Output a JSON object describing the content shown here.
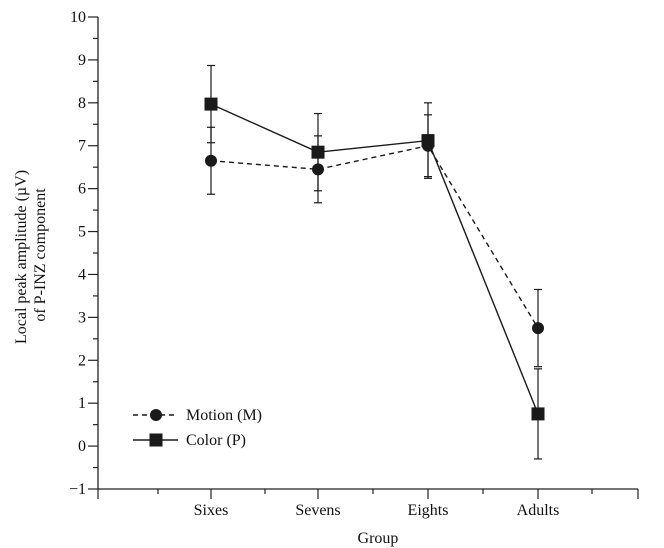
{
  "chart_data": {
    "type": "line",
    "categories": [
      "Sixes",
      "Sevens",
      "Eights",
      "Adults"
    ],
    "xlabel": "Group",
    "ylabel_lines": [
      "Local peak amplitude (µV)",
      "of P-INZ component"
    ],
    "ylim": [
      -1,
      10
    ],
    "yticks": [
      -1,
      0,
      1,
      2,
      3,
      4,
      5,
      6,
      7,
      8,
      9,
      10
    ],
    "grid": false,
    "legend_position": "bottom-left",
    "series": [
      {
        "name": "Motion (M)",
        "marker": "circle",
        "line_style": "dashed",
        "color": "#1a1a1a",
        "values": [
          6.65,
          6.45,
          7.0,
          2.75
        ],
        "error": [
          0.78,
          0.78,
          0.72,
          0.9
        ]
      },
      {
        "name": "Color (P)",
        "marker": "square",
        "line_style": "solid",
        "color": "#1a1a1a",
        "values": [
          7.97,
          6.85,
          7.12,
          0.75
        ],
        "error": [
          0.9,
          0.9,
          0.88,
          1.05
        ]
      }
    ]
  }
}
